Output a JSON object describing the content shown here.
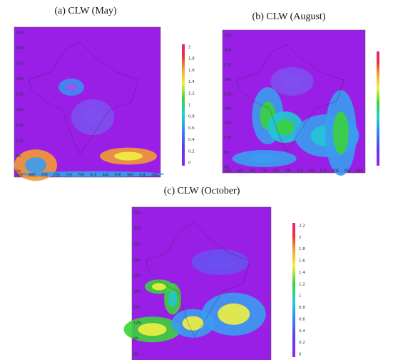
{
  "panels": [
    {
      "title": "(a) CLW (May)",
      "x_labels": [
        "65E",
        "68E",
        "70E",
        "72E",
        "75E",
        "78E",
        "81E",
        "84E",
        "87E",
        "90E",
        "93E",
        "96E"
      ],
      "y_labels": [
        "33N",
        "30N",
        "27N",
        "24N",
        "21N",
        "18N",
        "15N",
        "12N",
        "9N",
        "6N"
      ],
      "colorbar_labels": [
        "2",
        "1.8",
        "1.6",
        "1.4",
        "1.2",
        "1",
        "0.8",
        "0.6",
        "0.4",
        "0.2",
        "0"
      ]
    },
    {
      "title": "(b) CLW (August)",
      "x_labels": [
        "65E",
        "68E",
        "70E",
        "72E",
        "75E",
        "78E",
        "81E",
        "84E",
        "87E",
        "90E",
        "93E",
        "96E"
      ],
      "y_labels": [
        "33N",
        "30N",
        "27N",
        "24N",
        "21N",
        "18N",
        "15N",
        "12N",
        "9N",
        "6N"
      ]
    },
    {
      "title": "(c) CLW (October)",
      "y_labels": [
        "33N",
        "30N",
        "27N",
        "24N",
        "21N",
        "18N",
        "15N",
        "12N",
        "9N",
        "6N"
      ],
      "colorbar_labels": [
        "2.2",
        "2",
        "1.8",
        "1.6",
        "1.4",
        "1.2",
        "1",
        "0.8",
        "0.6",
        "0.4",
        "0.2",
        "0"
      ]
    }
  ]
}
